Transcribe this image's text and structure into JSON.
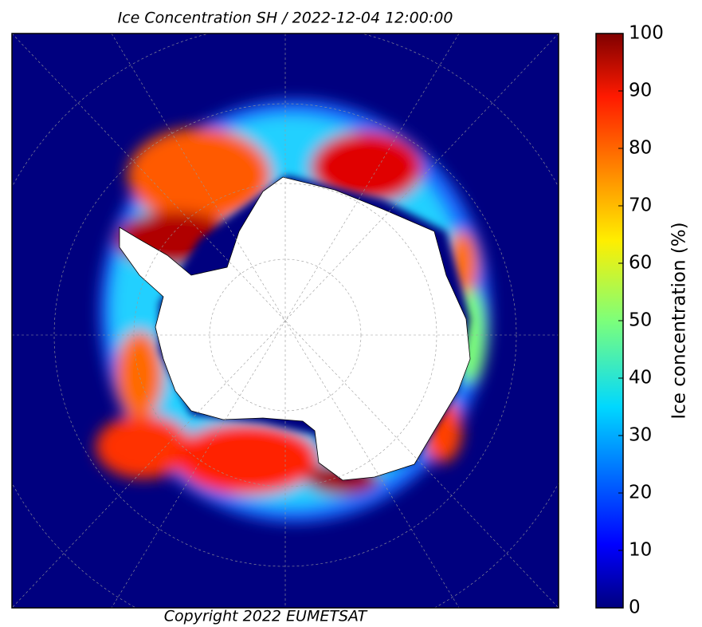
{
  "title": "Ice Concentration SH / 2022-12-04 12:00:00",
  "copyright": "Copyright 2022 EUMETSAT",
  "colorbar": {
    "label": "Ice concentration (%)",
    "range": [
      0,
      100
    ],
    "ticks": [
      0,
      10,
      20,
      30,
      40,
      50,
      60,
      70,
      80,
      90,
      100
    ]
  }
}
